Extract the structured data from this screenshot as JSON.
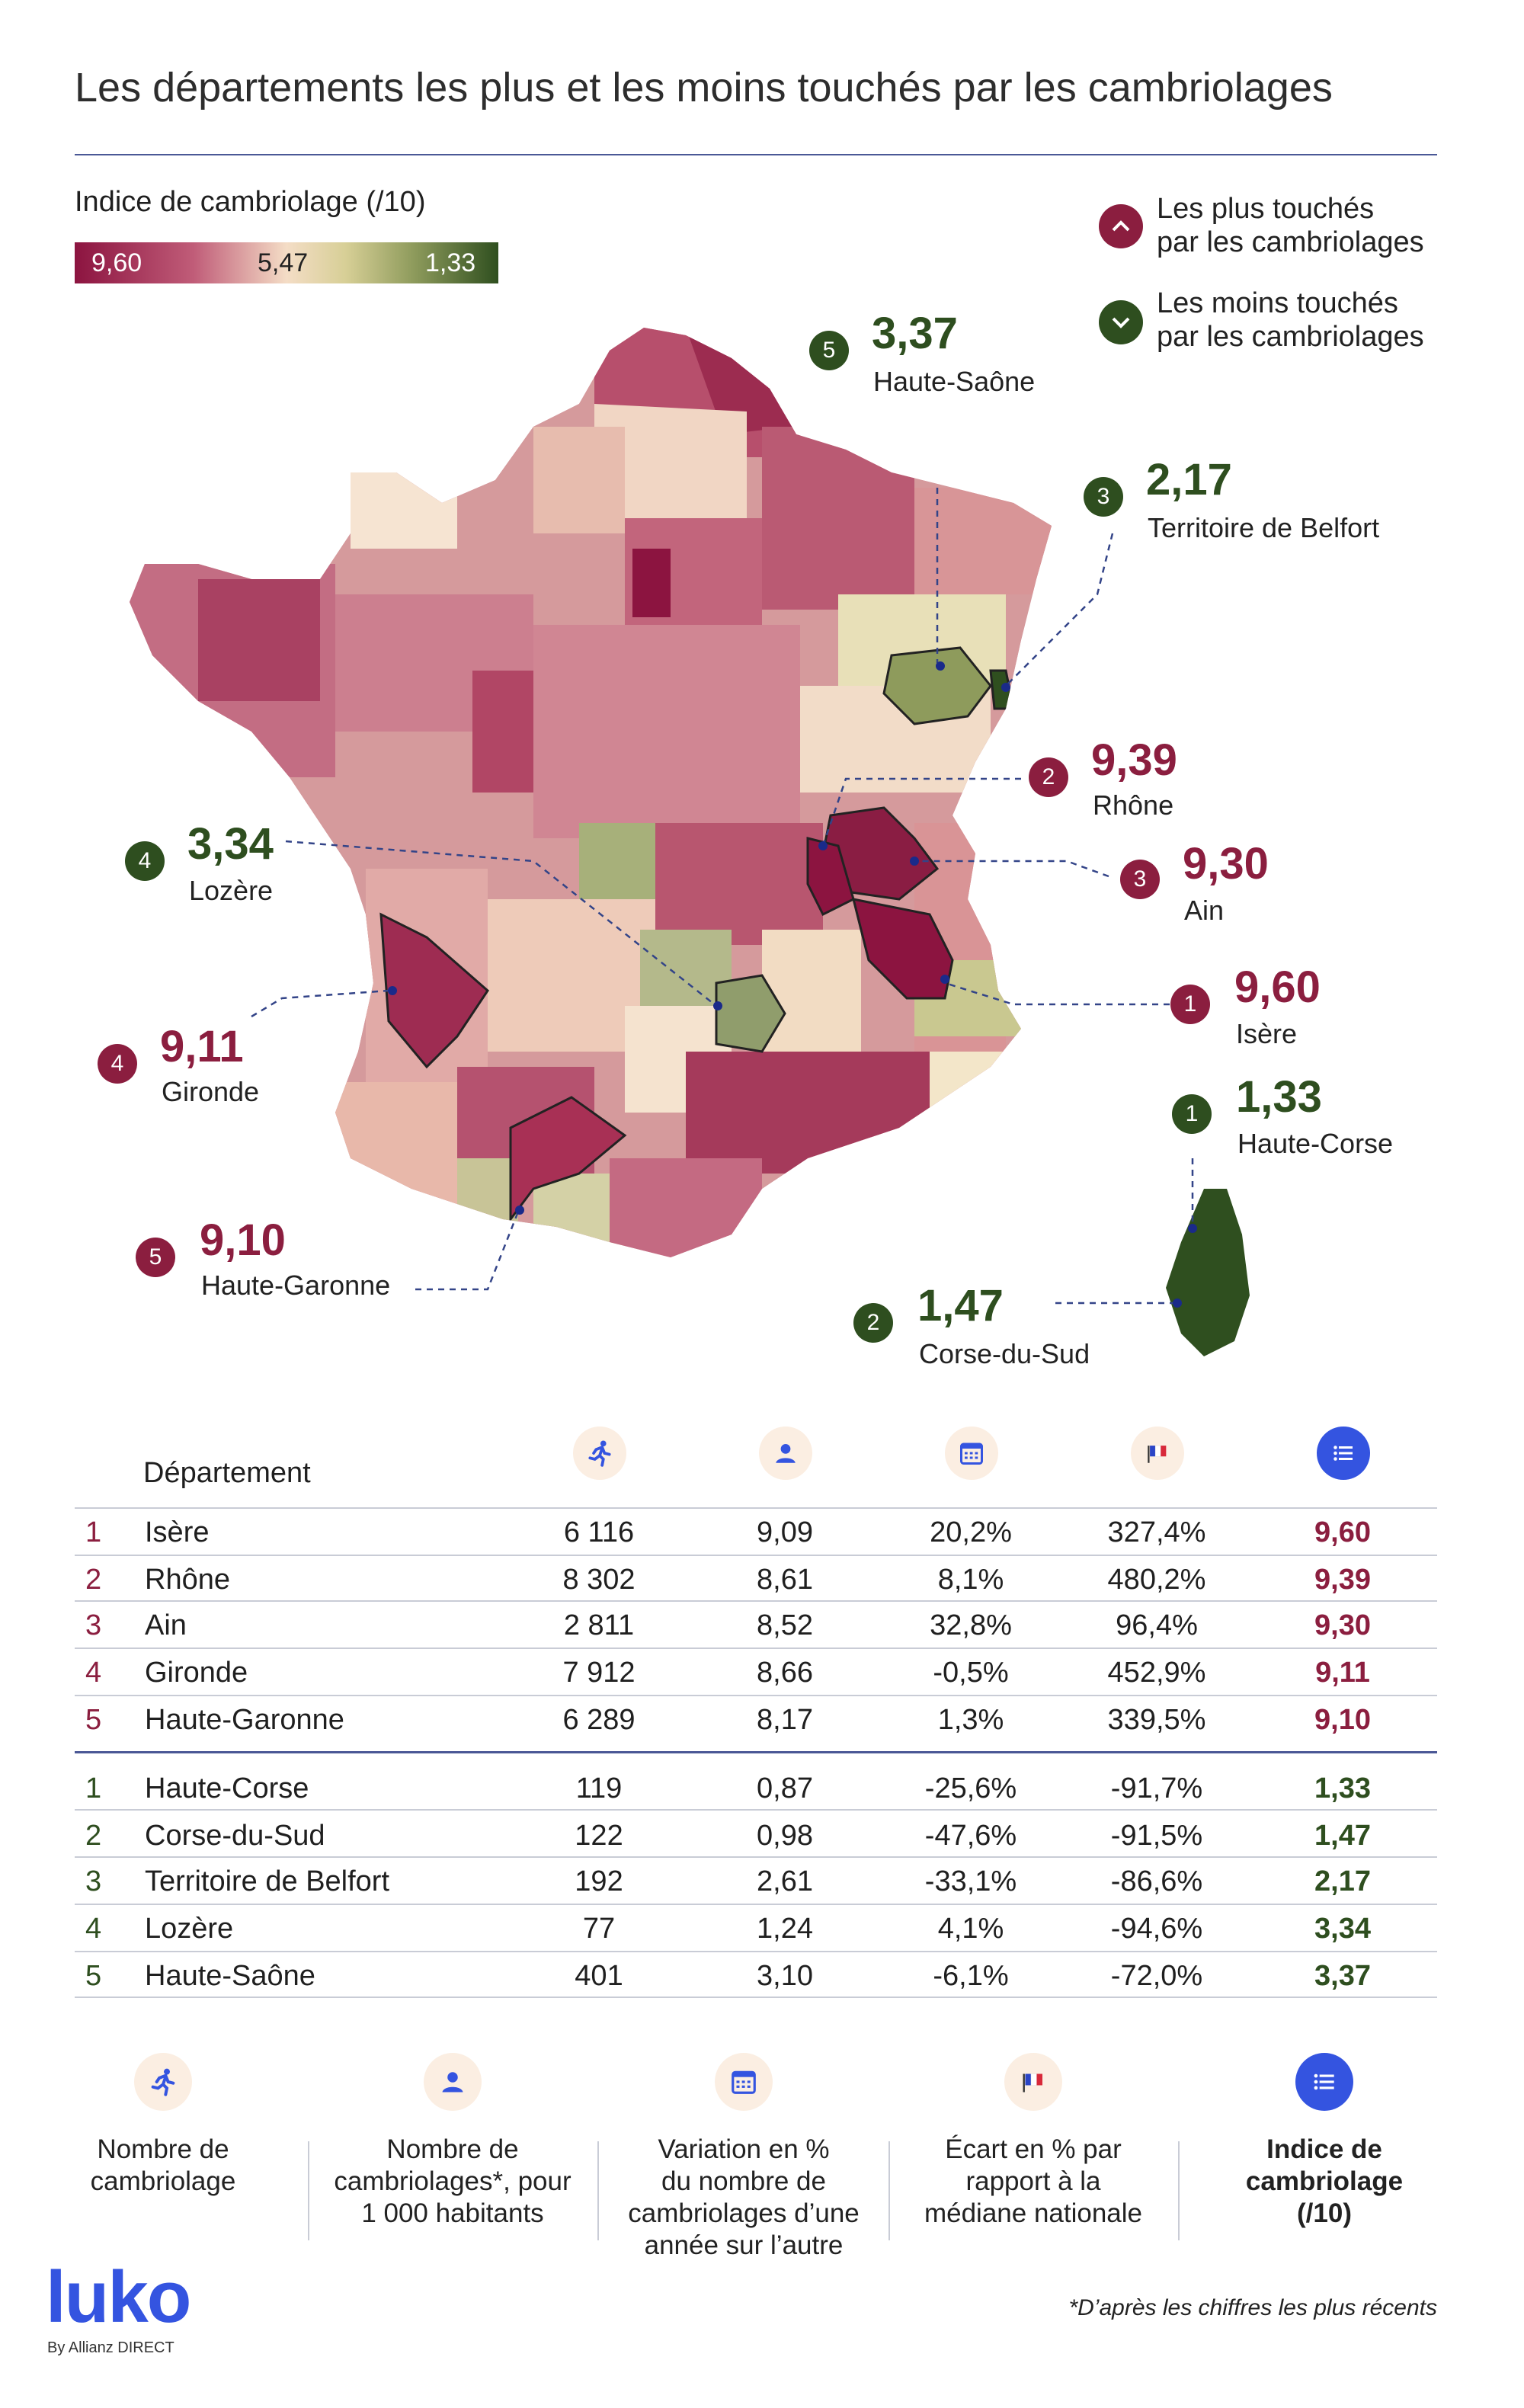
{
  "title": "Les départements les plus et les moins touchés par les cambriolages",
  "legend": {
    "title": "Indice de cambriolage (/10)",
    "high": "9,60",
    "mid": "5,47",
    "low": "1,33",
    "colors": {
      "high": "#8c1440",
      "mid": "#f4ddc6",
      "low": "#2f4f1f"
    }
  },
  "key": {
    "most": "Les plus touchés\npar les cambriolages",
    "least": "Les moins touchés\npar les cambriolages",
    "most_icon": "chevron-up-icon",
    "least_icon": "chevron-down-icon"
  },
  "callouts": [
    {
      "rank": "5",
      "value": "3,37",
      "name": "Haute-Saône",
      "group": "least"
    },
    {
      "rank": "3",
      "value": "2,17",
      "name": "Territoire de Belfort",
      "group": "least"
    },
    {
      "rank": "2",
      "value": "9,39",
      "name": "Rhône",
      "group": "most"
    },
    {
      "rank": "4",
      "value": "3,34",
      "name": "Lozère",
      "group": "least"
    },
    {
      "rank": "3",
      "value": "9,30",
      "name": "Ain",
      "group": "most"
    },
    {
      "rank": "1",
      "value": "9,60",
      "name": "Isère",
      "group": "most"
    },
    {
      "rank": "4",
      "value": "9,11",
      "name": "Gironde",
      "group": "most"
    },
    {
      "rank": "1",
      "value": "1,33",
      "name": "Haute-Corse",
      "group": "least"
    },
    {
      "rank": "5",
      "value": "9,10",
      "name": "Haute-Garonne",
      "group": "most"
    },
    {
      "rank": "2",
      "value": "1,47",
      "name": "Corse-du-Sud",
      "group": "least"
    }
  ],
  "table": {
    "header_label": "Département",
    "header_icons": [
      "runner-icon",
      "person-icon",
      "calendar-icon",
      "france-flag-icon",
      "list-icon"
    ],
    "most": [
      {
        "rank": "1",
        "dep": "Isère",
        "count": "6 116",
        "per1000": "9,09",
        "var": "20,2%",
        "gap": "327,4%",
        "index": "9,60"
      },
      {
        "rank": "2",
        "dep": "Rhône",
        "count": "8 302",
        "per1000": "8,61",
        "var": "8,1%",
        "gap": "480,2%",
        "index": "9,39"
      },
      {
        "rank": "3",
        "dep": "Ain",
        "count": "2 811",
        "per1000": "8,52",
        "var": "32,8%",
        "gap": "96,4%",
        "index": "9,30"
      },
      {
        "rank": "4",
        "dep": "Gironde",
        "count": "7 912",
        "per1000": "8,66",
        "var": "-0,5%",
        "gap": "452,9%",
        "index": "9,11"
      },
      {
        "rank": "5",
        "dep": "Haute-Garonne",
        "count": "6 289",
        "per1000": "8,17",
        "var": "1,3%",
        "gap": "339,5%",
        "index": "9,10"
      }
    ],
    "least": [
      {
        "rank": "1",
        "dep": "Haute-Corse",
        "count": "119",
        "per1000": "0,87",
        "var": "-25,6%",
        "gap": "-91,7%",
        "index": "1,33"
      },
      {
        "rank": "2",
        "dep": "Corse-du-Sud",
        "count": "122",
        "per1000": "0,98",
        "var": "-47,6%",
        "gap": "-91,5%",
        "index": "1,47"
      },
      {
        "rank": "3",
        "dep": "Territoire de Belfort",
        "count": "192",
        "per1000": "2,61",
        "var": "-33,1%",
        "gap": "-86,6%",
        "index": "2,17"
      },
      {
        "rank": "4",
        "dep": "Lozère",
        "count": "77",
        "per1000": "1,24",
        "var": "4,1%",
        "gap": "-94,6%",
        "index": "3,34"
      },
      {
        "rank": "5",
        "dep": "Haute-Saône",
        "count": "401",
        "per1000": "3,10",
        "var": "-6,1%",
        "gap": "-72,0%",
        "index": "3,37"
      }
    ]
  },
  "footer_legend": [
    {
      "icon": "runner-icon",
      "text": "Nombre de\ncambriolage",
      "bold": false
    },
    {
      "icon": "person-icon",
      "text": "Nombre de\ncambriolages*, pour\n1 000 habitants",
      "bold": false
    },
    {
      "icon": "calendar-icon",
      "text": "Variation en %\ndu nombre de\ncambriolages d’une\nannée sur l’autre",
      "bold": false
    },
    {
      "icon": "france-flag-icon",
      "text": "Écart en % par\nrapport à la\nmédiane nationale",
      "bold": false
    },
    {
      "icon": "list-icon",
      "text": "Indice de\ncambriolage\n(/10)",
      "bold": true
    }
  ],
  "logo": {
    "name": "luko",
    "sub": "By Allianz DIRECT"
  },
  "source_note": "*D’après les chiffres les plus récents",
  "colors": {
    "most": "#8b1e3f",
    "least": "#2e4e1f",
    "accent": "#3454e0",
    "rule": "#4a5896"
  }
}
